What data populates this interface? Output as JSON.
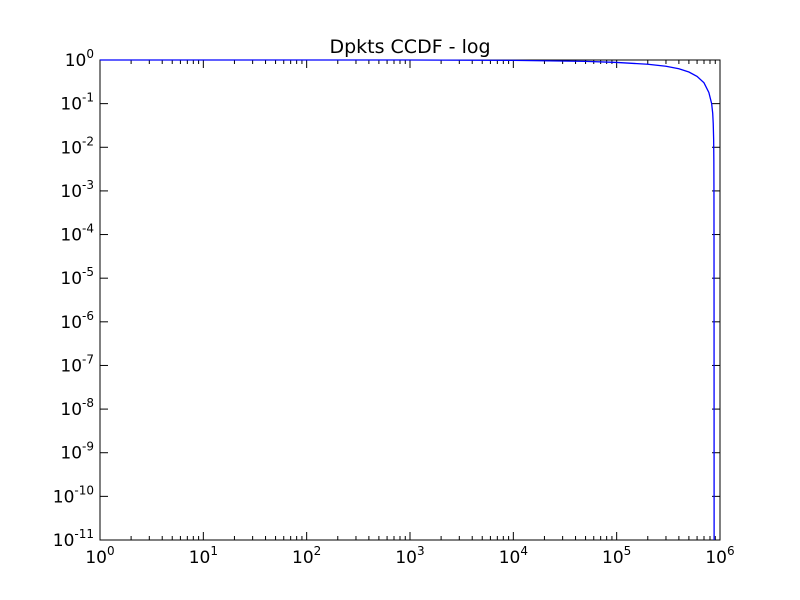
{
  "chart_data": {
    "type": "line",
    "title": "Dpkts CCDF - log",
    "xlabel": "",
    "ylabel": "",
    "xscale": "log",
    "yscale": "log",
    "xlim": [
      1,
      1000000
    ],
    "ylim": [
      1e-11,
      1
    ],
    "grid": false,
    "x_ticks": [
      {
        "base": "10",
        "exp": "0",
        "value": 1
      },
      {
        "base": "10",
        "exp": "1",
        "value": 10
      },
      {
        "base": "10",
        "exp": "2",
        "value": 100
      },
      {
        "base": "10",
        "exp": "3",
        "value": 1000
      },
      {
        "base": "10",
        "exp": "4",
        "value": 10000
      },
      {
        "base": "10",
        "exp": "5",
        "value": 100000
      },
      {
        "base": "10",
        "exp": "6",
        "value": 1000000
      }
    ],
    "y_ticks": [
      {
        "base": "10",
        "exp": "0",
        "value": 1
      },
      {
        "base": "10",
        "exp": "-1",
        "value": 0.1
      },
      {
        "base": "10",
        "exp": "-2",
        "value": 0.01
      },
      {
        "base": "10",
        "exp": "-3",
        "value": 0.001
      },
      {
        "base": "10",
        "exp": "-4",
        "value": 0.0001
      },
      {
        "base": "10",
        "exp": "-5",
        "value": 1e-05
      },
      {
        "base": "10",
        "exp": "-6",
        "value": 1e-06
      },
      {
        "base": "10",
        "exp": "-7",
        "value": 1e-07
      },
      {
        "base": "10",
        "exp": "-8",
        "value": 1e-08
      },
      {
        "base": "10",
        "exp": "-9",
        "value": 1e-09
      },
      {
        "base": "10",
        "exp": "-10",
        "value": 1e-10
      },
      {
        "base": "10",
        "exp": "-11",
        "value": 1e-11
      }
    ],
    "series": [
      {
        "color": "#0000ff",
        "x": [
          1,
          10,
          100,
          1000,
          10000,
          50000,
          100000,
          200000,
          300000,
          400000,
          500000,
          600000,
          700000,
          780000,
          830000,
          850000,
          860000,
          868000,
          872000,
          874000,
          875000,
          876000,
          876500,
          877000
        ],
        "y": [
          1,
          1,
          1,
          1,
          0.98,
          0.93,
          0.88,
          0.8,
          0.72,
          0.63,
          0.53,
          0.42,
          0.3,
          0.18,
          0.1,
          0.06,
          0.035,
          0.015,
          0.005,
          0.001,
          0.0001,
          1e-06,
          1e-08,
          1e-11
        ]
      }
    ]
  }
}
